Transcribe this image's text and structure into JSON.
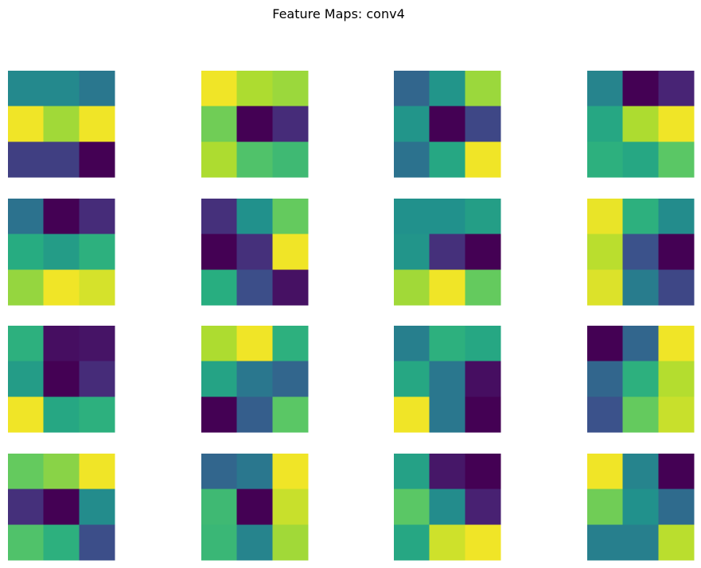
{
  "title": "Feature Maps: conv4",
  "chart_data": {
    "type": "heatmap",
    "title": "Feature Maps: conv4",
    "layout": "4 rows x 4 columns of 3x3 feature maps",
    "colormap": "viridis",
    "axes": "off",
    "maps": [
      [
        [
          0.47,
          0.47,
          0.4
        ],
        [
          0.98,
          0.86,
          0.98
        ],
        [
          0.2,
          0.2,
          0.0
        ]
      ],
      [
        [
          0.98,
          0.88,
          0.85
        ],
        [
          0.78,
          0.0,
          0.15
        ],
        [
          0.88,
          0.72,
          0.68
        ]
      ],
      [
        [
          0.33,
          0.52,
          0.85
        ],
        [
          0.52,
          0.0,
          0.22
        ],
        [
          0.38,
          0.6,
          0.98
        ]
      ],
      [
        [
          0.45,
          0.0,
          0.13
        ],
        [
          0.6,
          0.88,
          0.98
        ],
        [
          0.64,
          0.6,
          0.74
        ]
      ],
      [
        [
          0.38,
          0.0,
          0.15
        ],
        [
          0.62,
          0.55,
          0.64
        ],
        [
          0.84,
          0.98,
          0.94
        ]
      ],
      [
        [
          0.16,
          0.5,
          0.76
        ],
        [
          0.0,
          0.16,
          0.98
        ],
        [
          0.63,
          0.24,
          0.06
        ]
      ],
      [
        [
          0.5,
          0.5,
          0.56
        ],
        [
          0.52,
          0.16,
          0.0
        ],
        [
          0.86,
          0.98,
          0.76
        ]
      ],
      [
        [
          0.97,
          0.64,
          0.48
        ],
        [
          0.9,
          0.25,
          0.0
        ],
        [
          0.95,
          0.42,
          0.22
        ]
      ],
      [
        [
          0.64,
          0.05,
          0.07
        ],
        [
          0.55,
          0.0,
          0.15
        ],
        [
          0.98,
          0.6,
          0.64
        ]
      ],
      [
        [
          0.88,
          0.98,
          0.64
        ],
        [
          0.58,
          0.4,
          0.33
        ],
        [
          0.0,
          0.3,
          0.74
        ]
      ],
      [
        [
          0.43,
          0.64,
          0.6
        ],
        [
          0.6,
          0.4,
          0.05
        ],
        [
          0.98,
          0.4,
          0.0
        ]
      ],
      [
        [
          0.0,
          0.33,
          0.98
        ],
        [
          0.33,
          0.64,
          0.89
        ],
        [
          0.25,
          0.76,
          0.92
        ]
      ],
      [
        [
          0.76,
          0.82,
          0.98
        ],
        [
          0.16,
          0.0,
          0.48
        ],
        [
          0.72,
          0.64,
          0.24
        ]
      ],
      [
        [
          0.33,
          0.4,
          0.98
        ],
        [
          0.68,
          0.0,
          0.92
        ],
        [
          0.67,
          0.45,
          0.86
        ]
      ],
      [
        [
          0.57,
          0.08,
          0.0
        ],
        [
          0.74,
          0.48,
          0.12
        ],
        [
          0.6,
          0.93,
          0.98
        ]
      ],
      [
        [
          0.98,
          0.45,
          0.0
        ],
        [
          0.78,
          0.5,
          0.35
        ],
        [
          0.43,
          0.43,
          0.9
        ]
      ]
    ]
  }
}
